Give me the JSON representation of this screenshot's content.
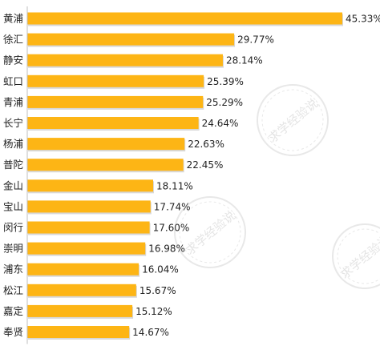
{
  "chart_data": {
    "type": "bar",
    "orientation": "horizontal",
    "categories": [
      "黄浦",
      "徐汇",
      "静安",
      "虹口",
      "青浦",
      "长宁",
      "杨浦",
      "普陀",
      "金山",
      "宝山",
      "闵行",
      "崇明",
      "浦东",
      "松江",
      "嘉定",
      "奉贤"
    ],
    "values": [
      45.33,
      29.77,
      28.14,
      25.39,
      25.29,
      24.64,
      22.63,
      22.45,
      18.11,
      17.74,
      17.6,
      16.98,
      16.04,
      15.67,
      15.12,
      14.67
    ],
    "value_labels": [
      "45.33%",
      "29.77%",
      "28.14%",
      "25.39%",
      "25.29%",
      "24.64%",
      "22.63%",
      "22.45%",
      "18.11%",
      "17.74%",
      "17.60%",
      "16.98%",
      "16.04%",
      "15.67%",
      "15.12%",
      "14.67%"
    ],
    "title": "",
    "xlabel": "",
    "ylabel": "",
    "grid": false,
    "legend": "none",
    "colors": {
      "bar": "#FDB515",
      "bar_shadow": "#d8d8d8",
      "text": "#222222",
      "axis": "#bfbfbf"
    }
  },
  "watermark": {
    "text": "求学经验说"
  }
}
